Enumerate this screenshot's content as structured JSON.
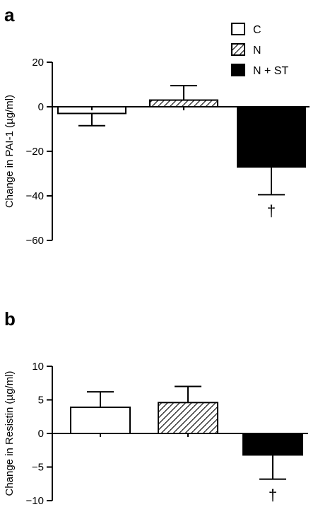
{
  "legend": [
    {
      "key": "C",
      "label": "C",
      "fill": "white"
    },
    {
      "key": "N",
      "label": "N",
      "fill": "hatch"
    },
    {
      "key": "NST",
      "label": "N + ST",
      "fill": "black"
    }
  ],
  "colors": {
    "ink": "#000000",
    "background": "#ffffff"
  },
  "chart_data": [
    {
      "type": "bar",
      "panel": "a",
      "ylabel": "Change in PAI-1 (µg/ml)",
      "ylim": [
        -60,
        20
      ],
      "yticks": [
        20,
        0,
        -20,
        -40,
        -60
      ],
      "ytick_labels": [
        "20",
        "0",
        "−20",
        "−40",
        "−60"
      ],
      "categories": [
        "C",
        "N",
        "N + ST"
      ],
      "values": [
        -3,
        3,
        -27
      ],
      "errors": [
        5.5,
        6.5,
        12.5
      ],
      "annotations": [
        "",
        "",
        "†"
      ],
      "grid": false,
      "legend_placement": "top-right"
    },
    {
      "type": "bar",
      "panel": "b",
      "ylabel": "Change in Resistin (µg/ml)",
      "ylim": [
        -10,
        10
      ],
      "yticks": [
        10,
        5,
        0,
        -5,
        -10
      ],
      "ytick_labels": [
        "10",
        "5",
        "0",
        "−5",
        "−10"
      ],
      "categories": [
        "C",
        "N",
        "N + ST"
      ],
      "values": [
        3.9,
        4.6,
        -3.2
      ],
      "errors": [
        2.3,
        2.4,
        3.6
      ],
      "annotations": [
        "",
        "",
        "†"
      ],
      "grid": false
    }
  ]
}
